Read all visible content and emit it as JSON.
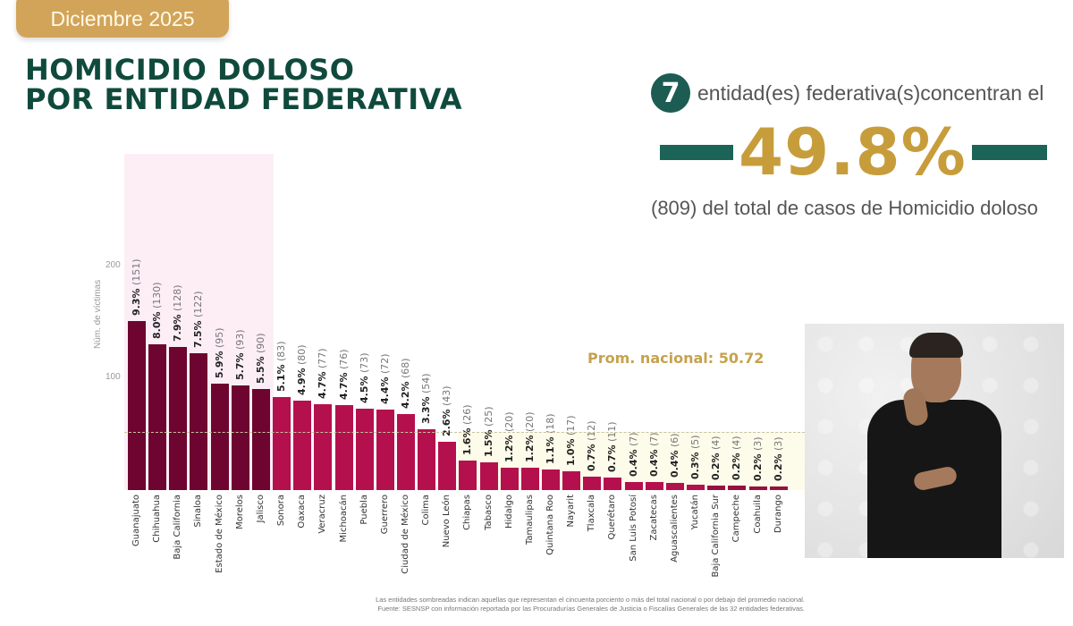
{
  "header": {
    "date_badge": "Diciembre 2025",
    "title_line1": "HOMICIDIO DOLOSO",
    "title_line2": "POR ENTIDAD FEDERATIVA"
  },
  "summary": {
    "count": "7",
    "line1": "entidad(es) federativa(s)concentran el",
    "percent": "49.8%",
    "line3": "(809) del total de casos de Homicidio doloso"
  },
  "average_label": "Prom. nacional: 50.72",
  "footnote": {
    "line1": "Las entidades sombreadas indican aquellas que representan el cincuenta porciento o más del total nacional o por debajo del promedio nacional.",
    "line2": "Fuente: SESNSP con información reportada por las Procuradurías Generales de Justicia o Fiscalías Generales de las 32 entidades federativas."
  },
  "video": {
    "description": "sign language interpreter"
  },
  "colors": {
    "top_bar": "#6e0530",
    "mid_bar": "#b5104e",
    "low_bar": "#96103f",
    "title": "#0f4a3c",
    "gold": "#c79d3b",
    "teal": "#1c6358"
  },
  "chart_data": {
    "type": "bar",
    "title": "HOMICIDIO DOLOSO POR ENTIDAD FEDERATIVA",
    "xlabel": "",
    "ylabel": "Núm. de víctimas",
    "ylim": [
      0,
      200
    ],
    "yticks": [
      100,
      200
    ],
    "average": 50.72,
    "average_label": "Prom. nacional: 50.72",
    "categories": [
      "Guanajuato",
      "Chihuahua",
      "Baja California",
      "Sinaloa",
      "Estado de México",
      "Morelos",
      "Jalisco",
      "Sonora",
      "Oaxaca",
      "Veracruz",
      "Michoacán",
      "Puebla",
      "Guerrero",
      "Ciudad de México",
      "Colima",
      "Nuevo León",
      "Chiapas",
      "Tabasco",
      "Hidalgo",
      "Tamaulipas",
      "Quintana Roo",
      "Nayarit",
      "Tlaxcala",
      "Querétaro",
      "San Luis Potosí",
      "Zacatecas",
      "Aguascalientes",
      "Yucatán",
      "Baja California Sur",
      "Campeche",
      "Coahuila",
      "Durango"
    ],
    "values": [
      151,
      130,
      128,
      122,
      95,
      93,
      90,
      83,
      80,
      77,
      76,
      73,
      72,
      68,
      54,
      43,
      26,
      25,
      20,
      20,
      18,
      17,
      12,
      11,
      7,
      7,
      6,
      5,
      4,
      4,
      3,
      3
    ],
    "percentages": [
      "9.3%",
      "8.0%",
      "7.9%",
      "7.5%",
      "5.9%",
      "5.7%",
      "5.5%",
      "5.1%",
      "4.9%",
      "4.7%",
      "4.7%",
      "4.5%",
      "4.4%",
      "4.2%",
      "3.3%",
      "2.6%",
      "1.6%",
      "1.5%",
      "1.2%",
      "1.2%",
      "1.1%",
      "1.0%",
      "0.7%",
      "0.7%",
      "0.4%",
      "0.4%",
      "0.4%",
      "0.3%",
      "0.2%",
      "0.2%",
      "0.2%",
      "0.2%"
    ],
    "highlighted_top_count": 7,
    "grid": false,
    "legend": null
  }
}
